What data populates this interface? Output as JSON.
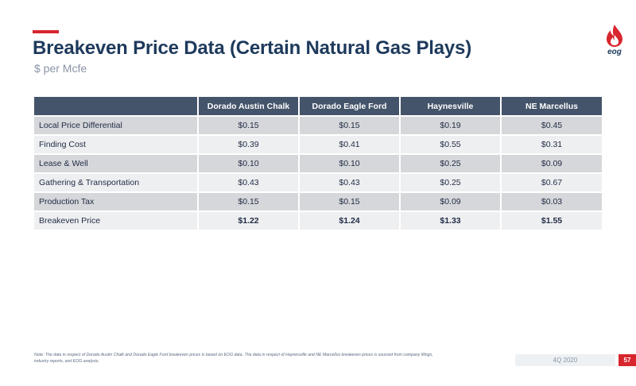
{
  "header": {
    "title": "Breakeven Price Data (Certain Natural Gas Plays)",
    "subtitle": "$ per Mcfe"
  },
  "logo": {
    "text": "eog",
    "icon": "flame-drop-icon",
    "color": "#d8262e"
  },
  "table": {
    "columns": [
      "",
      "Dorado Austin Chalk",
      "Dorado Eagle Ford",
      "Haynesville",
      "NE Marcellus"
    ],
    "rows": [
      {
        "label": "Local Price Differential",
        "values": [
          "$0.15",
          "$0.15",
          "$0.19",
          "$0.45"
        ]
      },
      {
        "label": "Finding Cost",
        "values": [
          "$0.39",
          "$0.41",
          "$0.55",
          "$0.31"
        ]
      },
      {
        "label": "Lease & Well",
        "values": [
          "$0.10",
          "$0.10",
          "$0.25",
          "$0.09"
        ]
      },
      {
        "label": "Gathering & Transportation",
        "values": [
          "$0.43",
          "$0.43",
          "$0.25",
          "$0.67"
        ]
      },
      {
        "label": "Production Tax",
        "values": [
          "$0.15",
          "$0.15",
          "$0.09",
          "$0.03"
        ]
      },
      {
        "label": "Breakeven Price",
        "values": [
          "$1.22",
          "$1.24",
          "$1.33",
          "$1.55"
        ]
      }
    ]
  },
  "footer": {
    "note_line1": "Note: The data in respect of Dorado Austin Chalk and Dorado Eagle Ford breakeven prices is based on EOG data.  The data in respect of Haynesville and NE Marcellus breakeven prices is sourced from company filings,",
    "note_line2": "industry reports, and EOG analysis.",
    "period": "4Q 2020",
    "page_number": "57"
  },
  "colors": {
    "accent": "#d8262e",
    "title": "#1e3a5c",
    "header_fill": "#44546a",
    "row_dark": "#d6d7da",
    "row_light": "#eeeff1"
  }
}
